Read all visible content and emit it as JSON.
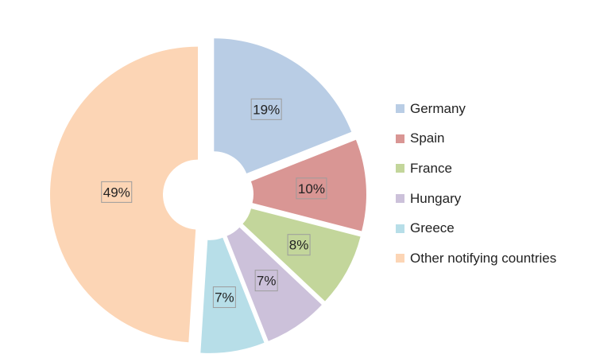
{
  "chart_data": {
    "type": "pie",
    "title": "",
    "categories": [
      "Germany",
      "Spain",
      "France",
      "Hungary",
      "Greece",
      "Other notifying countries"
    ],
    "values": [
      19,
      10,
      8,
      7,
      7,
      49
    ],
    "labels": [
      "19%",
      "10%",
      "8%",
      "7%",
      "7%",
      "49%"
    ],
    "unit": "%",
    "colors": [
      "#b9cde5",
      "#d99694",
      "#c3d69b",
      "#ccc1da",
      "#b7dee8",
      "#fcd5b5"
    ],
    "donut_hole": true,
    "exploded": true,
    "legend_position": "right"
  }
}
